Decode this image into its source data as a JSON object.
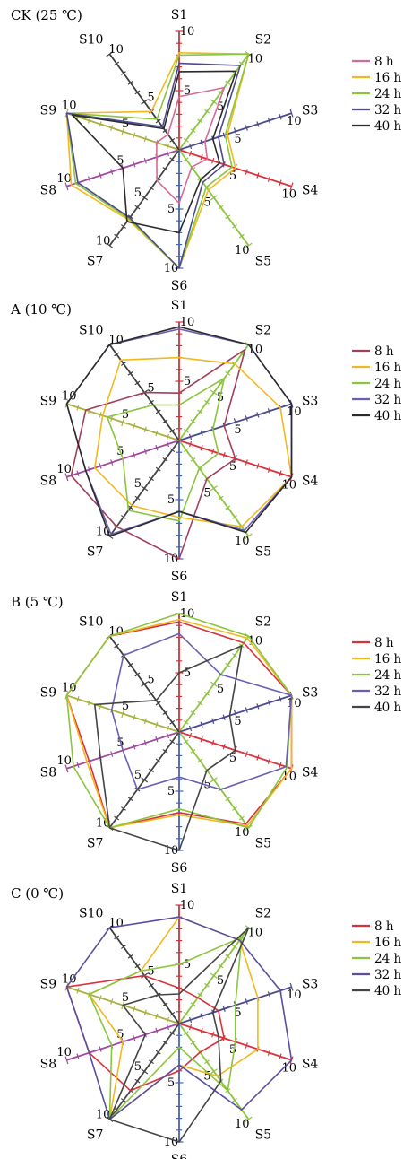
{
  "chart_data": [
    {
      "type": "radar",
      "title": "CK (25 ℃)",
      "axes": [
        "S1",
        "S2",
        "S3",
        "S4",
        "S5",
        "S6",
        "S7",
        "S8",
        "S9",
        "S10"
      ],
      "tick_labels": [
        "5",
        "10"
      ],
      "range": [
        0,
        10
      ],
      "legend_position": "right",
      "series": [
        {
          "name": "8 h",
          "color": "#d86a9a",
          "values": [
            4.5,
            6.5,
            2.3,
            2.5,
            1.8,
            4.5,
            3.2,
            2.0,
            2.0,
            1.6
          ]
        },
        {
          "name": "16 h",
          "color": "#f2b81e",
          "values": [
            8.2,
            10.0,
            4.3,
            5.0,
            4.2,
            10.0,
            7.3,
            9.6,
            10.0,
            4.0
          ]
        },
        {
          "name": "24 h",
          "color": "#8bc53e",
          "values": [
            8.0,
            10.0,
            4.1,
            4.7,
            3.9,
            10.0,
            7.2,
            9.2,
            10.0,
            3.2
          ]
        },
        {
          "name": "32 h",
          "color": "#4d4b8e",
          "values": [
            7.3,
            8.8,
            3.5,
            4.0,
            3.4,
            10.0,
            7.1,
            9.0,
            10.0,
            2.4
          ]
        },
        {
          "name": "40 h",
          "color": "#2b2b2b",
          "values": [
            6.6,
            8.2,
            3.0,
            3.6,
            3.1,
            7.0,
            7.5,
            5.0,
            9.5,
            2.2
          ]
        }
      ]
    },
    {
      "type": "radar",
      "title": "A (10 ℃)",
      "axes": [
        "S1",
        "S2",
        "S3",
        "S4",
        "S5",
        "S6",
        "S7",
        "S8",
        "S9",
        "S10"
      ],
      "tick_labels": [
        "5",
        "10"
      ],
      "range": [
        0,
        10
      ],
      "legend_position": "right",
      "series": [
        {
          "name": "8 h",
          "color": "#a0405a",
          "values": [
            4.0,
            9.5,
            4.0,
            5.0,
            4.0,
            10.0,
            9.0,
            9.6,
            8.3,
            5.0
          ]
        },
        {
          "name": "16 h",
          "color": "#f2b81e",
          "values": [
            7.0,
            8.0,
            9.0,
            10.0,
            9.0,
            6.5,
            6.8,
            7.5,
            6.8,
            8.4
          ]
        },
        {
          "name": "24 h",
          "color": "#8bc53e",
          "values": [
            3.0,
            6.5,
            3.0,
            3.5,
            2.9,
            6.8,
            7.3,
            5.0,
            6.4,
            3.7
          ]
        },
        {
          "name": "32 h",
          "color": "#6a5fb0",
          "values": [
            9.4,
            10.0,
            10.0,
            10.0,
            9.4,
            6.0,
            9.8,
            8.3,
            10.0,
            10.0
          ]
        },
        {
          "name": "40 h",
          "color": "#2b2b2b",
          "values": [
            9.6,
            10.0,
            10.0,
            10.0,
            9.6,
            6.0,
            10.0,
            8.3,
            10.0,
            10.0
          ]
        }
      ]
    },
    {
      "type": "radar",
      "title": "B (5 ℃)",
      "axes": [
        "S1",
        "S2",
        "S3",
        "S4",
        "S5",
        "S6",
        "S7",
        "S8",
        "S9",
        "S10"
      ],
      "tick_labels": [
        "5",
        "10"
      ],
      "range": [
        0,
        10
      ],
      "legend_position": "right",
      "series": [
        {
          "name": "8 h",
          "color": "#d8323c",
          "values": [
            9.3,
            9.3,
            10.0,
            10.0,
            9.6,
            6.8,
            10.0,
            8.0,
            10.0,
            10.0
          ]
        },
        {
          "name": "16 h",
          "color": "#f2b81e",
          "values": [
            9.5,
            9.8,
            10.0,
            10.0,
            9.8,
            7.0,
            10.0,
            8.2,
            10.0,
            10.0
          ]
        },
        {
          "name": "24 h",
          "color": "#8bc53e",
          "values": [
            10.0,
            10.0,
            10.0,
            9.6,
            10.0,
            6.5,
            10.0,
            9.4,
            10.0,
            10.0
          ]
        },
        {
          "name": "32 h",
          "color": "#6a5fb0",
          "values": [
            8.3,
            6.0,
            10.0,
            9.5,
            6.0,
            3.8,
            6.0,
            5.0,
            6.0,
            8.0
          ]
        },
        {
          "name": "40 h",
          "color": "#444444",
          "values": [
            5.0,
            9.0,
            4.5,
            5.0,
            4.0,
            10.0,
            10.0,
            7.0,
            7.5,
            3.3
          ]
        }
      ]
    },
    {
      "type": "radar",
      "title": "C (0 ℃)",
      "axes": [
        "S1",
        "S2",
        "S3",
        "S4",
        "S5",
        "S6",
        "S7",
        "S8",
        "S9",
        "S10"
      ],
      "tick_labels": [
        "5",
        "10"
      ],
      "range": [
        0,
        10
      ],
      "legend_position": "right",
      "series": [
        {
          "name": "8 h",
          "color": "#d8323c",
          "values": [
            3.0,
            2.7,
            3.5,
            4.0,
            3.0,
            4.0,
            7.0,
            8.0,
            10.0,
            5.0
          ]
        },
        {
          "name": "16 h",
          "color": "#f2b81e",
          "values": [
            9.0,
            8.7,
            7.0,
            7.0,
            5.5,
            3.5,
            10.0,
            5.0,
            8.0,
            5.5
          ]
        },
        {
          "name": "24 h",
          "color": "#8bc53e",
          "values": [
            5.0,
            9.0,
            5.0,
            5.0,
            7.0,
            2.0,
            10.0,
            6.0,
            8.0,
            5.5
          ]
        },
        {
          "name": "32 h",
          "color": "#5a4ea0",
          "values": [
            9.0,
            8.7,
            9.0,
            10.0,
            9.0,
            3.5,
            10.0,
            8.0,
            10.0,
            10.0
          ]
        },
        {
          "name": "40 h",
          "color": "#444444",
          "values": [
            2.5,
            10.0,
            3.0,
            3.5,
            6.0,
            10.0,
            10.0,
            3.0,
            5.0,
            3.0
          ]
        }
      ]
    }
  ]
}
